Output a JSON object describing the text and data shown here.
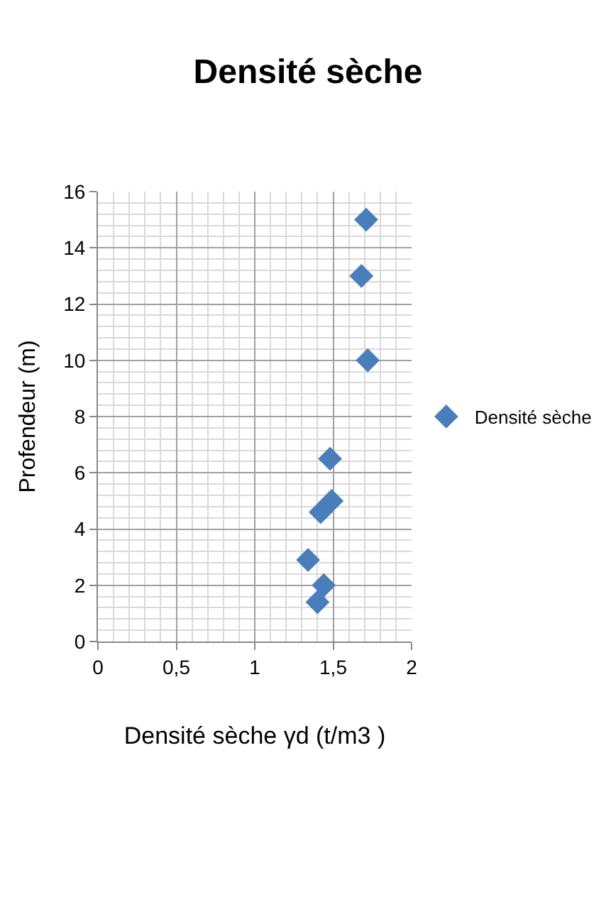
{
  "chart_data": {
    "type": "scatter",
    "title": "Densité sèche",
    "xlabel": "Densité sèche γd (t/m3 )",
    "ylabel": "Profendeur (m)",
    "series": [
      {
        "name": "Densité sèche",
        "color": "#4a7ebb",
        "x": [
          1.71,
          1.68,
          1.72,
          1.48,
          1.49,
          1.42,
          1.34,
          1.44,
          1.4
        ],
        "values": [
          15.0,
          13.0,
          10.0,
          6.5,
          5.0,
          4.6,
          2.9,
          2.0,
          1.4
        ]
      }
    ],
    "marker": "diamond",
    "grid": true,
    "legend": "right",
    "xlim": [
      0,
      2
    ],
    "xticks": [
      0,
      {
        "value": 0.5,
        "label": "0,5"
      },
      1,
      {
        "value": 1.5,
        "label": "1,5"
      },
      2
    ],
    "ylim": [
      0,
      16
    ],
    "yticks": [
      0,
      2,
      4,
      6,
      8,
      10,
      12,
      14,
      16
    ]
  }
}
